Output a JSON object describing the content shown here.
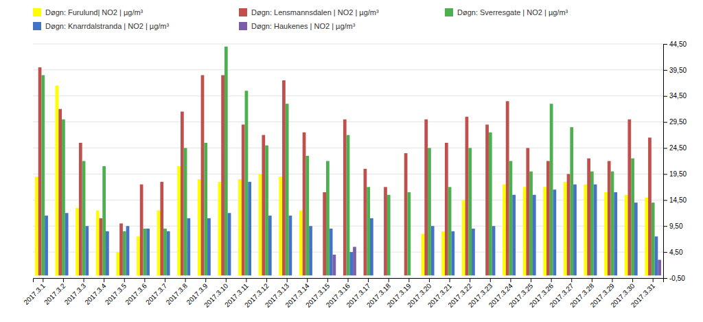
{
  "chart_data": {
    "type": "bar",
    "categories": [
      "2017.3.1",
      "2017.3.2",
      "2017.3.3",
      "2017.3.4",
      "2017.3.5",
      "2017.3.6",
      "2017.3.7",
      "2017.3.8",
      "2017.3.9",
      "2017.3.10",
      "2017.3.11",
      "2017.3.12",
      "2017.3.13",
      "2017.3.14",
      "2017.3.15",
      "2017.3.16",
      "2017.3.17",
      "2017.3.18",
      "2017.3.19",
      "2017.3.20",
      "2017.3.21",
      "2017.3.22",
      "2017.3.23",
      "2017.3.24",
      "2017.3.25",
      "2017.3.26",
      "2017.3.27",
      "2017.3.28",
      "2017.3.29",
      "2017.3.30",
      "2017.3.31"
    ],
    "series": [
      {
        "name": "Døgn: Furulund| NO2 | µg/m³",
        "color": "#FFFF00",
        "values": [
          19.0,
          36.5,
          13.0,
          12.5,
          4.5,
          7.5,
          12.5,
          21.0,
          18.5,
          18.0,
          18.5,
          19.5,
          19.0,
          12.5,
          0.0,
          0.0,
          0.0,
          0.0,
          0.0,
          8.0,
          8.5,
          14.5,
          0.0,
          17.5,
          17.0,
          17.0,
          18.0,
          17.5,
          16.0,
          15.5,
          15.0
        ]
      },
      {
        "name": "Døgn: Lensmannsdalen | NO2 | µg/m³",
        "color": "#C0504D",
        "values": [
          40.0,
          32.0,
          25.5,
          11.0,
          10.0,
          17.5,
          18.0,
          31.5,
          38.5,
          38.5,
          29.0,
          27.0,
          37.5,
          27.5,
          16.0,
          30.0,
          20.5,
          17.0,
          23.5,
          30.0,
          25.5,
          30.5,
          29.0,
          33.5,
          24.5,
          22.0,
          19.5,
          22.5,
          22.0,
          30.0,
          26.5
        ]
      },
      {
        "name": "Døgn: Sverresgate  | NO2 | µg/m³",
        "color": "#4CAF50",
        "values": [
          38.5,
          30.0,
          22.0,
          21.0,
          8.5,
          9.0,
          9.0,
          24.5,
          25.5,
          44.0,
          35.5,
          25.0,
          33.0,
          23.0,
          22.0,
          27.0,
          17.0,
          15.5,
          16.0,
          24.5,
          17.0,
          24.5,
          27.5,
          22.0,
          20.0,
          33.0,
          28.5,
          20.0,
          20.0,
          22.5,
          14.0
        ]
      },
      {
        "name": "Døgn: Knarrdalstranda | NO2 | µg/m³",
        "color": "#4472C4",
        "values": [
          11.5,
          12.0,
          9.5,
          8.5,
          9.5,
          9.0,
          8.5,
          11.0,
          11.0,
          12.0,
          18.0,
          11.5,
          11.5,
          9.5,
          9.0,
          4.5,
          11.0,
          0.0,
          0.0,
          9.5,
          8.5,
          9.0,
          9.5,
          15.5,
          15.5,
          16.5,
          17.5,
          17.5,
          16.0,
          14.0,
          7.5
        ]
      },
      {
        "name": "Døgn: Haukenes | NO2 | µg/m³",
        "color": "#7B5EA7",
        "values": [
          0.0,
          0.0,
          0.0,
          0.0,
          0.0,
          0.0,
          0.0,
          0.0,
          0.0,
          0.0,
          0.0,
          0.0,
          0.0,
          0.0,
          4.0,
          5.5,
          0.0,
          0.0,
          0.0,
          0.0,
          0.0,
          0.0,
          0.0,
          0.0,
          0.0,
          0.0,
          0.0,
          0.0,
          0.0,
          0.0,
          3.0
        ]
      }
    ],
    "ylim": [
      -0.5,
      44.5
    ],
    "yticks": [
      {
        "value": -0.5,
        "label": "-0,50"
      },
      {
        "value": 4.5,
        "label": "4,50"
      },
      {
        "value": 9.5,
        "label": "9,50"
      },
      {
        "value": 14.5,
        "label": "14,50"
      },
      {
        "value": 19.5,
        "label": "19,50"
      },
      {
        "value": 24.5,
        "label": "24,50"
      },
      {
        "value": 29.5,
        "label": "29,50"
      },
      {
        "value": 34.5,
        "label": "34,50"
      },
      {
        "value": 39.5,
        "label": "39,50"
      },
      {
        "value": 44.5,
        "label": "44,50"
      }
    ],
    "grid": true,
    "legend": "upper left"
  }
}
